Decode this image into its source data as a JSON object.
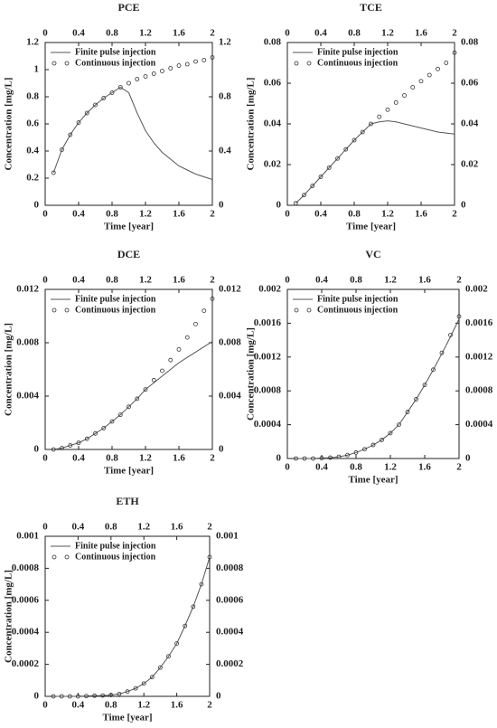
{
  "chart_data": [
    {
      "type": "line",
      "title": "PCE",
      "xlabel": "Time [year]",
      "ylabel": "Concentration [mg/L]",
      "x": [
        0.1,
        0.2,
        0.3,
        0.4,
        0.5,
        0.6,
        0.7,
        0.8,
        0.9,
        1.0,
        1.1,
        1.2,
        1.3,
        1.4,
        1.5,
        1.6,
        1.7,
        1.8,
        1.9,
        2.0
      ],
      "series": [
        {
          "name": "Finite pulse injection",
          "color": "#555555",
          "style": "line",
          "values": [
            0.24,
            0.41,
            0.52,
            0.61,
            0.68,
            0.74,
            0.79,
            0.83,
            0.87,
            0.83,
            0.68,
            0.55,
            0.46,
            0.39,
            0.34,
            0.29,
            0.26,
            0.23,
            0.21,
            0.19
          ]
        },
        {
          "name": "Continuous injection",
          "color": "#333333",
          "style": "markers",
          "values": [
            0.24,
            0.41,
            0.52,
            0.61,
            0.68,
            0.74,
            0.79,
            0.83,
            0.87,
            0.9,
            0.93,
            0.95,
            0.97,
            0.99,
            1.01,
            1.03,
            1.04,
            1.06,
            1.07,
            1.09
          ]
        }
      ],
      "xlim": [
        0,
        2
      ],
      "xticks": [
        0,
        0.4,
        0.8,
        1.2,
        1.6,
        2
      ],
      "x2ticks": [
        0,
        0.4,
        0.8,
        1.2,
        1.6,
        2
      ],
      "ylim": [
        0,
        1.2
      ],
      "yticks": [
        0,
        0.2,
        0.4,
        0.6,
        0.8,
        1,
        1.2
      ],
      "y2lim": [
        0,
        1.2
      ],
      "y2ticks": [
        0,
        0.4,
        0.8,
        1.2
      ]
    },
    {
      "type": "line",
      "title": "TCE",
      "xlabel": "Time [year]",
      "ylabel": "Concentration [mg/L]",
      "x": [
        0.1,
        0.2,
        0.3,
        0.4,
        0.5,
        0.6,
        0.7,
        0.8,
        0.9,
        1.0,
        1.1,
        1.2,
        1.3,
        1.4,
        1.5,
        1.6,
        1.7,
        1.8,
        1.9,
        2.0
      ],
      "series": [
        {
          "name": "Finite pulse injection",
          "color": "#555555",
          "style": "line",
          "values": [
            0.001,
            0.005,
            0.0095,
            0.014,
            0.0185,
            0.023,
            0.0275,
            0.032,
            0.036,
            0.04,
            0.041,
            0.0415,
            0.041,
            0.04,
            0.039,
            0.038,
            0.037,
            0.036,
            0.0355,
            0.035
          ]
        },
        {
          "name": "Continuous injection",
          "color": "#333333",
          "style": "markers",
          "values": [
            0.001,
            0.005,
            0.0095,
            0.014,
            0.0185,
            0.023,
            0.0275,
            0.032,
            0.036,
            0.04,
            0.0435,
            0.047,
            0.0505,
            0.054,
            0.058,
            0.061,
            0.064,
            0.067,
            0.07,
            0.075
          ]
        }
      ],
      "xlim": [
        0,
        2
      ],
      "xticks": [
        0,
        0.4,
        0.8,
        1.2,
        1.6,
        2
      ],
      "x2ticks": [
        0,
        0.4,
        0.8,
        1.2,
        1.6,
        2
      ],
      "ylim": [
        0,
        0.08
      ],
      "yticks": [
        0,
        0.02,
        0.04,
        0.06,
        0.08
      ],
      "y2lim": [
        0,
        0.08
      ],
      "y2ticks": [
        0,
        0.02,
        0.04,
        0.06,
        0.08
      ]
    },
    {
      "type": "line",
      "title": "DCE",
      "xlabel": "Time [year]",
      "ylabel": "Concentration [mg/L]",
      "x": [
        0.1,
        0.2,
        0.3,
        0.4,
        0.5,
        0.6,
        0.7,
        0.8,
        0.9,
        1.0,
        1.1,
        1.2,
        1.3,
        1.4,
        1.5,
        1.6,
        1.7,
        1.8,
        1.9,
        2.0
      ],
      "series": [
        {
          "name": "Finite pulse injection",
          "color": "#555555",
          "style": "line",
          "values": [
            0,
            0.0001,
            0.0003,
            0.0005,
            0.0008,
            0.0012,
            0.0016,
            0.0021,
            0.0026,
            0.0032,
            0.0038,
            0.0045,
            0.005,
            0.0055,
            0.006,
            0.0065,
            0.0069,
            0.0073,
            0.0077,
            0.0081
          ]
        },
        {
          "name": "Continuous injection",
          "color": "#333333",
          "style": "markers",
          "values": [
            0,
            0.0001,
            0.0003,
            0.0005,
            0.0008,
            0.0012,
            0.0016,
            0.0021,
            0.0026,
            0.0032,
            0.0038,
            0.0045,
            0.0052,
            0.0059,
            0.0067,
            0.0075,
            0.0084,
            0.0094,
            0.0104,
            0.0113
          ]
        }
      ],
      "xlim": [
        0,
        2
      ],
      "xticks": [
        0,
        0.4,
        0.8,
        1.2,
        1.6,
        2
      ],
      "x2ticks": [
        0,
        0.4,
        0.8,
        1.2,
        1.6,
        2
      ],
      "ylim": [
        0,
        0.012
      ],
      "yticks": [
        0,
        0.004,
        0.008,
        0.012
      ],
      "y2lim": [
        0,
        0.012
      ],
      "y2ticks": [
        0,
        0.004,
        0.008,
        0.012
      ]
    },
    {
      "type": "line",
      "title": "VC",
      "xlabel": "Time [year]",
      "ylabel": "Concentration [mg/L]",
      "x": [
        0.1,
        0.2,
        0.3,
        0.4,
        0.5,
        0.6,
        0.7,
        0.8,
        0.9,
        1.0,
        1.1,
        1.2,
        1.3,
        1.4,
        1.5,
        1.6,
        1.7,
        1.8,
        1.9,
        2.0
      ],
      "series": [
        {
          "name": "Finite pulse injection",
          "color": "#555555",
          "style": "line",
          "values": [
            0,
            0,
            0,
            5e-06,
            1e-05,
            2e-05,
            4e-05,
            7e-05,
            0.00011,
            0.00016,
            0.00022,
            0.0003,
            0.0004,
            0.00055,
            0.0007,
            0.00087,
            0.00105,
            0.00124,
            0.00144,
            0.00165
          ]
        },
        {
          "name": "Continuous injection",
          "color": "#333333",
          "style": "markers",
          "values": [
            0,
            0,
            0,
            5e-06,
            1e-05,
            2e-05,
            4e-05,
            7e-05,
            0.00011,
            0.00016,
            0.00022,
            0.0003,
            0.0004,
            0.00055,
            0.0007,
            0.00087,
            0.00105,
            0.00125,
            0.00146,
            0.00168
          ]
        }
      ],
      "xlim": [
        0,
        2
      ],
      "xticks": [
        0,
        0.4,
        0.8,
        1.2,
        1.6,
        2
      ],
      "x2ticks": [
        0,
        0.4,
        0.8,
        1.2,
        1.6,
        2
      ],
      "ylim": [
        0,
        0.002
      ],
      "yticks": [
        0,
        0.0004,
        0.0008,
        0.0012,
        0.0016,
        0.002
      ],
      "y2lim": [
        0,
        0.002
      ],
      "y2ticks": [
        0,
        0.0004,
        0.0008,
        0.0012,
        0.0016,
        0.002
      ]
    },
    {
      "type": "line",
      "title": "ETH",
      "xlabel": "Time [year]",
      "ylabel": "Concentration [mg/L]",
      "x": [
        0.1,
        0.2,
        0.3,
        0.4,
        0.5,
        0.6,
        0.7,
        0.8,
        0.9,
        1.0,
        1.1,
        1.2,
        1.3,
        1.4,
        1.5,
        1.6,
        1.7,
        1.8,
        1.9,
        2.0
      ],
      "series": [
        {
          "name": "Finite pulse injection",
          "color": "#555555",
          "style": "line",
          "values": [
            0,
            0,
            0,
            0,
            2e-06,
            4e-06,
            5e-06,
            8e-06,
            1.5e-05,
            3e-05,
            5e-05,
            8e-05,
            0.00012,
            0.00018,
            0.00025,
            0.00033,
            0.00044,
            0.00056,
            0.0007,
            0.00087
          ]
        },
        {
          "name": "Continuous injection",
          "color": "#333333",
          "style": "markers",
          "values": [
            0,
            0,
            0,
            0,
            2e-06,
            4e-06,
            5e-06,
            8e-06,
            1.5e-05,
            3e-05,
            5e-05,
            8e-05,
            0.00012,
            0.00018,
            0.00025,
            0.00033,
            0.00044,
            0.00056,
            0.0007,
            0.00087
          ]
        }
      ],
      "xlim": [
        0,
        2
      ],
      "xticks": [
        0,
        0.4,
        0.8,
        1.2,
        1.6,
        2
      ],
      "x2ticks": [
        0,
        0.4,
        0.8,
        1.2,
        1.6,
        2
      ],
      "ylim": [
        0,
        0.001
      ],
      "yticks": [
        0,
        0.0002,
        0.0004,
        0.0006,
        0.0008,
        0.001
      ],
      "y2lim": [
        0,
        0.001
      ],
      "y2ticks": [
        0,
        0.0002,
        0.0004,
        0.0006,
        0.0008,
        0.001
      ]
    }
  ]
}
